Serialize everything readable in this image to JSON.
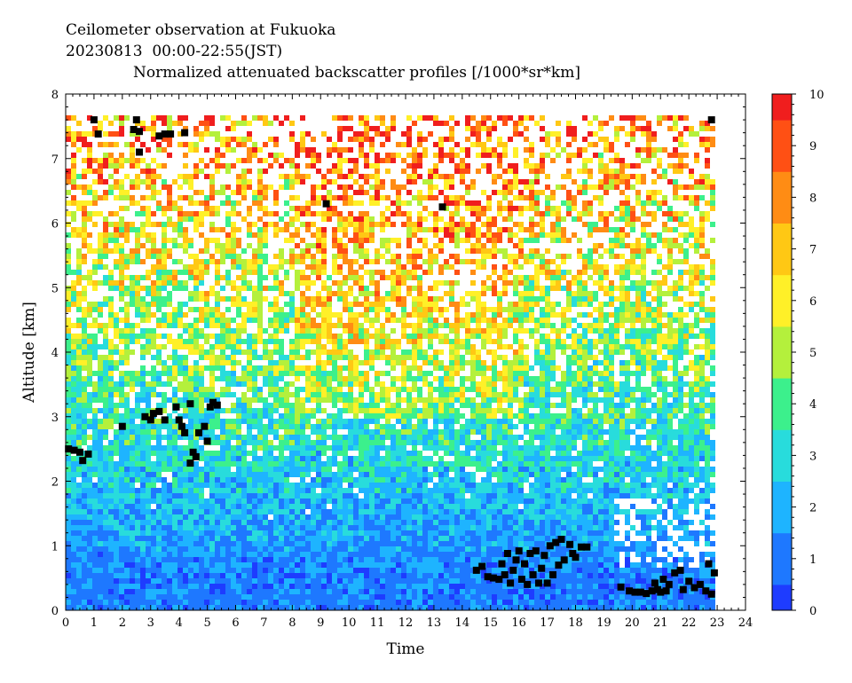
{
  "chart_data": {
    "type": "heatmap",
    "title_lines": [
      "Ceilometer observation at Fukuoka",
      "20230813  00:00-22:55(JST)",
      "Normalized attenuated backscatter profiles [/1000*sr*km]"
    ],
    "xlabel": "Time",
    "ylabel": "Altitude [km]",
    "xlim": [
      0,
      24
    ],
    "ylim": [
      0,
      8
    ],
    "x_ticks": [
      "0",
      "1",
      "2",
      "3",
      "4",
      "5",
      "6",
      "7",
      "8",
      "9",
      "10",
      "11",
      "12",
      "13",
      "14",
      "15",
      "16",
      "17",
      "18",
      "19",
      "20",
      "21",
      "22",
      "23",
      "24"
    ],
    "y_ticks": [
      "0",
      "1",
      "2",
      "3",
      "4",
      "5",
      "6",
      "7",
      "8"
    ],
    "data_time_range": [
      0,
      22.92
    ],
    "data_max_altitude": 7.67,
    "colorbar": {
      "range": [
        0,
        10
      ],
      "ticks": [
        "0",
        "1",
        "2",
        "3",
        "4",
        "5",
        "6",
        "7",
        "8",
        "9",
        "10"
      ],
      "colors": [
        "#1e3cff",
        "#1e78ff",
        "#1eb4ff",
        "#28dcdc",
        "#3cf08c",
        "#b4f03c",
        "#fff028",
        "#ffc814",
        "#ff8c14",
        "#ff5014",
        "#f01e1e"
      ]
    },
    "cloud_detections": [
      {
        "time": 0.1,
        "alt": 2.5
      },
      {
        "time": 0.3,
        "alt": 2.48
      },
      {
        "time": 0.5,
        "alt": 2.45
      },
      {
        "time": 0.6,
        "alt": 2.32
      },
      {
        "time": 0.8,
        "alt": 2.42
      },
      {
        "time": 1.0,
        "alt": 7.6
      },
      {
        "time": 1.15,
        "alt": 7.38
      },
      {
        "time": 2.0,
        "alt": 2.85
      },
      {
        "time": 2.4,
        "alt": 7.45
      },
      {
        "time": 2.5,
        "alt": 7.6
      },
      {
        "time": 2.6,
        "alt": 7.1
      },
      {
        "time": 2.6,
        "alt": 7.42
      },
      {
        "time": 2.8,
        "alt": 3.0
      },
      {
        "time": 3.0,
        "alt": 2.95
      },
      {
        "time": 3.1,
        "alt": 3.05
      },
      {
        "time": 3.3,
        "alt": 3.08
      },
      {
        "time": 3.5,
        "alt": 2.95
      },
      {
        "time": 3.3,
        "alt": 7.35
      },
      {
        "time": 3.5,
        "alt": 7.38
      },
      {
        "time": 3.7,
        "alt": 7.38
      },
      {
        "time": 3.9,
        "alt": 3.15
      },
      {
        "time": 4.0,
        "alt": 2.95
      },
      {
        "time": 4.1,
        "alt": 2.85
      },
      {
        "time": 4.2,
        "alt": 2.75
      },
      {
        "time": 4.4,
        "alt": 3.2
      },
      {
        "time": 4.2,
        "alt": 7.4
      },
      {
        "time": 4.5,
        "alt": 2.45
      },
      {
        "time": 4.4,
        "alt": 2.28
      },
      {
        "time": 4.6,
        "alt": 2.38
      },
      {
        "time": 4.7,
        "alt": 2.75
      },
      {
        "time": 4.9,
        "alt": 2.85
      },
      {
        "time": 5.0,
        "alt": 2.62
      },
      {
        "time": 5.1,
        "alt": 3.15
      },
      {
        "time": 5.2,
        "alt": 3.22
      },
      {
        "time": 5.35,
        "alt": 3.18
      },
      {
        "time": 9.2,
        "alt": 6.3
      },
      {
        "time": 13.3,
        "alt": 6.25
      },
      {
        "time": 14.5,
        "alt": 0.62
      },
      {
        "time": 14.7,
        "alt": 0.68
      },
      {
        "time": 14.9,
        "alt": 0.52
      },
      {
        "time": 15.1,
        "alt": 0.5
      },
      {
        "time": 15.3,
        "alt": 0.48
      },
      {
        "time": 15.4,
        "alt": 0.72
      },
      {
        "time": 15.5,
        "alt": 0.55
      },
      {
        "time": 15.6,
        "alt": 0.88
      },
      {
        "time": 15.7,
        "alt": 0.42
      },
      {
        "time": 15.8,
        "alt": 0.62
      },
      {
        "time": 15.9,
        "alt": 0.78
      },
      {
        "time": 16.0,
        "alt": 0.92
      },
      {
        "time": 16.1,
        "alt": 0.48
      },
      {
        "time": 16.2,
        "alt": 0.72
      },
      {
        "time": 16.3,
        "alt": 0.4
      },
      {
        "time": 16.4,
        "alt": 0.88
      },
      {
        "time": 16.5,
        "alt": 0.55
      },
      {
        "time": 16.6,
        "alt": 0.92
      },
      {
        "time": 16.7,
        "alt": 0.42
      },
      {
        "time": 16.8,
        "alt": 0.65
      },
      {
        "time": 16.9,
        "alt": 0.85
      },
      {
        "time": 17.0,
        "alt": 0.42
      },
      {
        "time": 17.1,
        "alt": 1.0
      },
      {
        "time": 17.2,
        "alt": 0.55
      },
      {
        "time": 17.3,
        "alt": 1.05
      },
      {
        "time": 17.4,
        "alt": 0.7
      },
      {
        "time": 17.5,
        "alt": 1.1
      },
      {
        "time": 17.6,
        "alt": 0.78
      },
      {
        "time": 17.8,
        "alt": 1.02
      },
      {
        "time": 17.9,
        "alt": 0.88
      },
      {
        "time": 18.0,
        "alt": 0.82
      },
      {
        "time": 18.2,
        "alt": 0.98
      },
      {
        "time": 18.4,
        "alt": 0.98
      },
      {
        "time": 19.6,
        "alt": 0.36
      },
      {
        "time": 19.9,
        "alt": 0.3
      },
      {
        "time": 20.1,
        "alt": 0.28
      },
      {
        "time": 20.3,
        "alt": 0.28
      },
      {
        "time": 20.5,
        "alt": 0.26
      },
      {
        "time": 20.7,
        "alt": 0.3
      },
      {
        "time": 20.8,
        "alt": 0.42
      },
      {
        "time": 20.9,
        "alt": 0.32
      },
      {
        "time": 21.0,
        "alt": 0.28
      },
      {
        "time": 21.1,
        "alt": 0.48
      },
      {
        "time": 21.2,
        "alt": 0.3
      },
      {
        "time": 21.3,
        "alt": 0.4
      },
      {
        "time": 21.5,
        "alt": 0.58
      },
      {
        "time": 21.7,
        "alt": 0.62
      },
      {
        "time": 21.8,
        "alt": 0.32
      },
      {
        "time": 22.0,
        "alt": 0.45
      },
      {
        "time": 22.2,
        "alt": 0.35
      },
      {
        "time": 22.4,
        "alt": 0.4
      },
      {
        "time": 22.6,
        "alt": 0.3
      },
      {
        "time": 22.7,
        "alt": 0.72
      },
      {
        "time": 22.8,
        "alt": 0.25
      },
      {
        "time": 22.9,
        "alt": 0.58
      },
      {
        "time": 22.8,
        "alt": 7.6
      }
    ]
  }
}
